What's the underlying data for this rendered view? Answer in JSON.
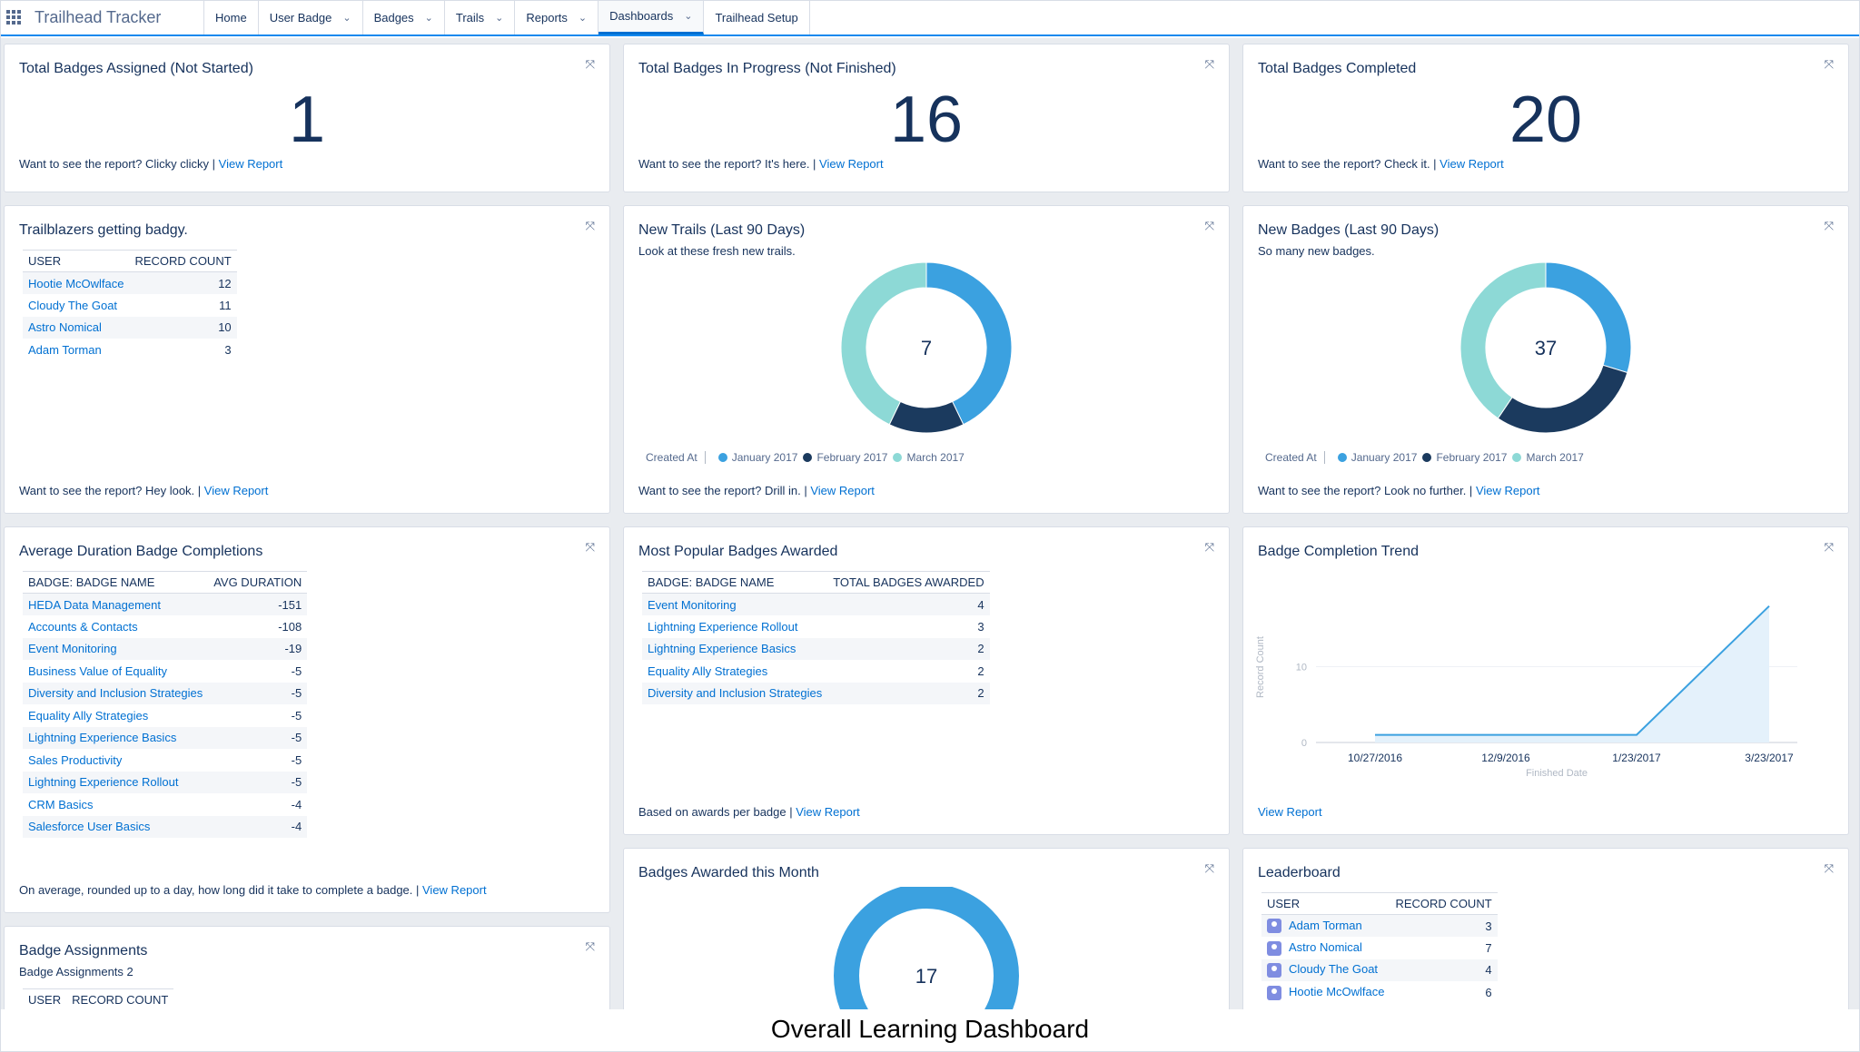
{
  "nav": {
    "app_name": "Trailhead Tracker",
    "items": [
      {
        "label": "Home",
        "chevron": false
      },
      {
        "label": "User Badge",
        "chevron": true
      },
      {
        "label": "Badges",
        "chevron": true
      },
      {
        "label": "Trails",
        "chevron": true
      },
      {
        "label": "Reports",
        "chevron": true
      },
      {
        "label": "Dashboards",
        "chevron": true,
        "active": true
      },
      {
        "label": "Trailhead Setup",
        "chevron": false
      }
    ]
  },
  "view_report": "View Report",
  "metrics": [
    {
      "title": "Total Badges Assigned (Not Started)",
      "value": "1",
      "footer": "Want to see the report? Clicky clicky | "
    },
    {
      "title": "Total Badges In Progress (Not Finished)",
      "value": "16",
      "footer": "Want to see the report? It's here. | "
    },
    {
      "title": "Total Badges Completed",
      "value": "20",
      "footer": "Want to see the report? Check it. | "
    }
  ],
  "trailblazers": {
    "title": "Trailblazers getting badgy.",
    "col1": "USER",
    "col2": "RECORD COUNT",
    "rows": [
      {
        "name": "Hootie McOwlface",
        "count": "12"
      },
      {
        "name": "Cloudy The Goat",
        "count": "11"
      },
      {
        "name": "Astro Nomical",
        "count": "10"
      },
      {
        "name": "Adam Torman",
        "count": "3"
      }
    ],
    "footer": "Want to see the report? Hey look. | "
  },
  "new_trails": {
    "title": "New Trails (Last 90 Days)",
    "subtitle": "Look at these fresh new trails.",
    "total": "7",
    "legend_label": "Created At",
    "footer": "Want to see the report? Drill in. | "
  },
  "new_badges": {
    "title": "New Badges (Last 90 Days)",
    "subtitle": "So many new badges.",
    "total": "37",
    "legend_label": "Created At",
    "footer": "Want to see the report? Look no further. | "
  },
  "legend_months": [
    {
      "label": "January 2017",
      "color": "#3ba1e0"
    },
    {
      "label": "February 2017",
      "color": "#1b3a5e"
    },
    {
      "label": "March 2017",
      "color": "#8dd9d6"
    }
  ],
  "avg_duration": {
    "title": "Average Duration Badge Completions",
    "col1": "BADGE: BADGE NAME",
    "col2": "AVG DURATION",
    "rows": [
      {
        "name": "HEDA Data Management",
        "value": "-151"
      },
      {
        "name": "Accounts & Contacts",
        "value": "-108"
      },
      {
        "name": "Event Monitoring",
        "value": "-19"
      },
      {
        "name": "Business Value of Equality",
        "value": "-5"
      },
      {
        "name": "Diversity and Inclusion Strategies",
        "value": "-5"
      },
      {
        "name": "Equality Ally Strategies",
        "value": "-5"
      },
      {
        "name": "Lightning Experience Basics",
        "value": "-5"
      },
      {
        "name": "Sales Productivity",
        "value": "-5"
      },
      {
        "name": "Lightning Experience Rollout",
        "value": "-5"
      },
      {
        "name": "CRM Basics",
        "value": "-4"
      },
      {
        "name": "Salesforce User Basics",
        "value": "-4"
      }
    ],
    "footer": "On average, rounded up to a day, how long did it take to complete a badge. | "
  },
  "popular": {
    "title": "Most Popular Badges Awarded",
    "col1": "BADGE: BADGE NAME",
    "col2": "TOTAL BADGES AWARDED",
    "rows": [
      {
        "name": "Event Monitoring",
        "value": "4"
      },
      {
        "name": "Lightning Experience Rollout",
        "value": "3"
      },
      {
        "name": "Lightning Experience Basics",
        "value": "2"
      },
      {
        "name": "Equality Ally Strategies",
        "value": "2"
      },
      {
        "name": "Diversity and Inclusion Strategies",
        "value": "2"
      }
    ],
    "footer": "Based on awards per badge | "
  },
  "trend": {
    "title": "Badge Completion Trend",
    "ylabel": "Record Count",
    "xlabel": "Finished Date",
    "xticks": [
      "10/27/2016",
      "12/9/2016",
      "1/23/2017",
      "3/23/2017"
    ],
    "yticks": [
      "0",
      "10"
    ]
  },
  "awarded_month": {
    "title": "Badges Awarded this Month",
    "total": "17"
  },
  "leaderboard": {
    "title": "Leaderboard",
    "col1": "USER",
    "col2": "RECORD COUNT",
    "rows": [
      {
        "name": "Adam Torman",
        "count": "3"
      },
      {
        "name": "Astro Nomical",
        "count": "7"
      },
      {
        "name": "Cloudy The Goat",
        "count": "4"
      },
      {
        "name": "Hootie McOwlface",
        "count": "6"
      }
    ]
  },
  "assignments": {
    "title": "Badge Assignments",
    "subtitle": "Badge Assignments 2",
    "col1": "USER",
    "col2": "RECORD COUNT"
  },
  "chart_data": [
    {
      "type": "pie",
      "title": "New Trails (Last 90 Days)",
      "categories": [
        "January 2017",
        "February 2017",
        "March 2017"
      ],
      "values": [
        3,
        1,
        3
      ],
      "total": 7
    },
    {
      "type": "pie",
      "title": "New Badges (Last 90 Days)",
      "categories": [
        "January 2017",
        "February 2017",
        "March 2017"
      ],
      "values": [
        11,
        11,
        15
      ],
      "total": 37
    },
    {
      "type": "area",
      "title": "Badge Completion Trend",
      "xlabel": "Finished Date",
      "ylabel": "Record Count",
      "x": [
        "10/27/2016",
        "1/23/2017",
        "3/23/2017"
      ],
      "values": [
        1,
        1,
        18
      ],
      "ylim": [
        0,
        20
      ]
    },
    {
      "type": "pie",
      "title": "Badges Awarded this Month",
      "categories": [
        "January 2017"
      ],
      "values": [
        17
      ],
      "total": 17
    }
  ],
  "caption": "Overall Learning Dashboard"
}
